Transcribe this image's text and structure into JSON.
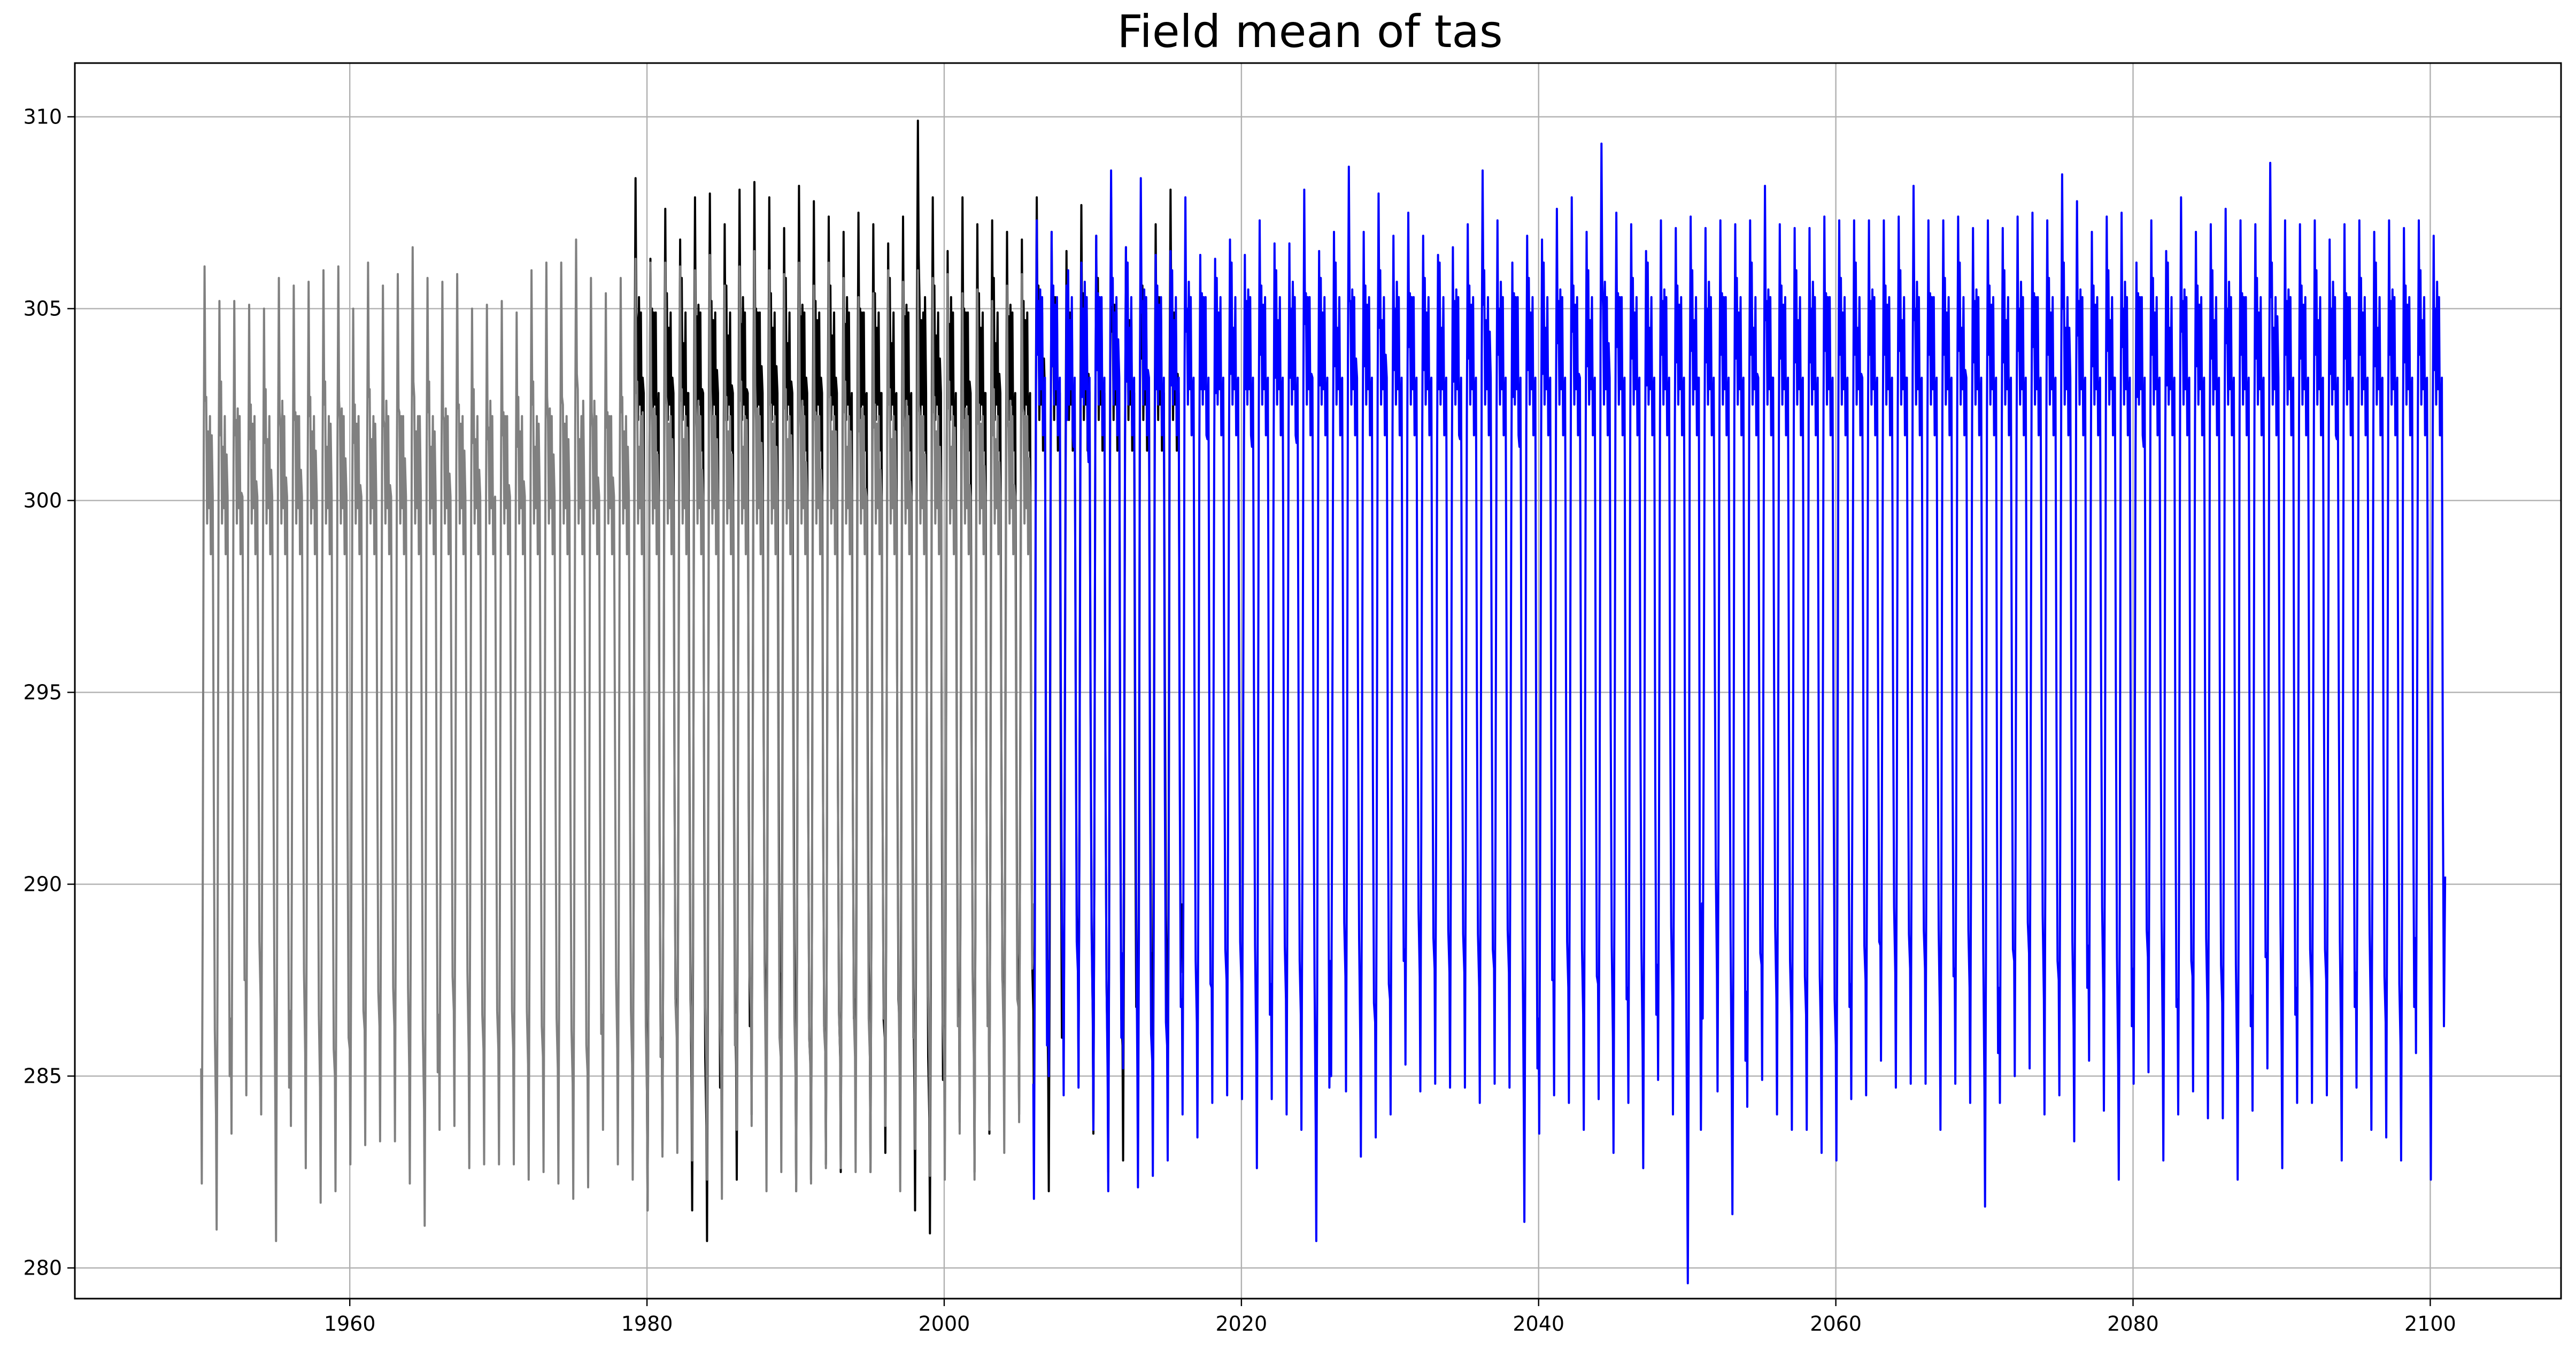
{
  "chart_data": {
    "type": "line",
    "title": "Field mean of tas",
    "xlabel": "",
    "ylabel": "",
    "xlim": [
      1941.5,
      2108.8
    ],
    "ylim": [
      279.2,
      311.4
    ],
    "xticks": [
      1960,
      1980,
      2000,
      2020,
      2040,
      2060,
      2080,
      2100
    ],
    "yticks": [
      280,
      285,
      290,
      295,
      300,
      305,
      310
    ],
    "grid": true,
    "legend": "none",
    "series": [
      {
        "color": "#000000",
        "x_range": [
          1979.0,
          2016.0
        ],
        "annual_max_approx": [
          308.4,
          306.3,
          307.6,
          306.8,
          307.9,
          308.0,
          307.2,
          308.1,
          308.3,
          307.9,
          307.1,
          308.2,
          307.8,
          307.4,
          307.0,
          307.5,
          307.2,
          306.7,
          307.4,
          309.9,
          307.9,
          306.5,
          307.9,
          307.2,
          307.3,
          307.0,
          306.8,
          307.9,
          307.0,
          306.5,
          307.7,
          306.9,
          307.9,
          306.6,
          307.2,
          307.2,
          308.1,
          307.8
        ],
        "annual_min_approx": [
          283.0,
          281.5,
          283.0,
          284.0,
          281.5,
          280.7,
          283.2,
          282.3,
          284.0,
          283.7,
          284.5,
          282.0,
          282.3,
          282.7,
          282.5,
          284.0,
          282.5,
          283.0,
          283.3,
          281.5,
          280.9,
          283.3,
          283.8,
          282.5,
          283.5,
          284.2,
          284.0,
          283.7,
          282.0,
          285.2,
          285.0,
          283.5,
          282.5,
          282.8,
          284.0,
          285.2,
          283.7,
          284.5
        ],
        "midyear_secondary_peak_approx": 304.3
      },
      {
        "color": "#808080",
        "x_range": [
          1950.0,
          2006.0
        ],
        "annual_max_approx": [
          306.1,
          305.2,
          305.2,
          305.1,
          305.0,
          305.8,
          305.6,
          305.7,
          306.0,
          306.1,
          305.0,
          306.2,
          305.6,
          305.9,
          306.6,
          305.8,
          305.7,
          305.9,
          305.0,
          305.1,
          305.2,
          304.9,
          306.0,
          306.2,
          306.2,
          306.8,
          305.8,
          305.4,
          305.8,
          306.3,
          306.2,
          306.2,
          306.1,
          306.0,
          306.4,
          305.6,
          306.1,
          306.5,
          306.0,
          305.9,
          306.2,
          305.6,
          306.2,
          305.8,
          305.3,
          305.4,
          306.0,
          305.7,
          306.0,
          305.8,
          305.9,
          305.4,
          305.5,
          305.2,
          305.6,
          305.9,
          305.4
        ],
        "annual_min_approx": [
          282.2,
          281.0,
          283.5,
          284.5,
          284.0,
          280.7,
          283.7,
          282.6,
          281.7,
          282.0,
          282.7,
          283.2,
          283.3,
          283.3,
          282.2,
          281.1,
          283.6,
          283.7,
          282.6,
          282.7,
          282.7,
          282.7,
          282.3,
          282.5,
          282.2,
          281.8,
          282.1,
          283.6,
          282.7,
          282.3,
          281.5,
          282.9,
          283.0,
          282.8,
          282.3,
          281.8,
          283.6,
          283.7,
          282.0,
          282.5,
          282.0,
          282.2,
          282.6,
          282.6,
          282.5,
          282.5,
          283.7,
          282.0,
          283.1,
          282.4,
          282.3,
          283.5,
          282.3,
          283.6,
          283.0,
          283.8,
          284.5
        ],
        "midyear_secondary_peak_approx": 301.6
      },
      {
        "color": "#0000ff",
        "x_range": [
          2006.0,
          2101.0
        ],
        "annual_max_approx": [
          307.3,
          307.0,
          305.6,
          306.2,
          306.9,
          308.6,
          306.6,
          308.4,
          306.4,
          306.5,
          307.9,
          306.4,
          306.3,
          306.8,
          306.4,
          307.3,
          306.7,
          306.7,
          308.1,
          306.5,
          307.0,
          308.7,
          307.0,
          308.0,
          306.9,
          307.5,
          306.9,
          306.4,
          306.6,
          307.2,
          308.6,
          307.3,
          306.2,
          306.9,
          306.8,
          307.6,
          307.9,
          307.0,
          309.3,
          307.5,
          307.2,
          306.5,
          307.3,
          307.1,
          307.4,
          307.1,
          307.3,
          307.2,
          307.3,
          308.2,
          307.2,
          307.1,
          307.1,
          307.4,
          307.3,
          307.3,
          307.3,
          307.3,
          307.4,
          308.2,
          307.3,
          307.3,
          307.4,
          307.1,
          307.3,
          307.1,
          307.4,
          307.5,
          307.3,
          308.5,
          307.8,
          307.0,
          307.4,
          307.5,
          306.2,
          307.3,
          306.5,
          307.9,
          307.0,
          307.2,
          307.6,
          307.3,
          307.2,
          308.8,
          307.3,
          307.2,
          307.3,
          306.8,
          307.2,
          307.3,
          307.0,
          307.3,
          307.1,
          307.3,
          306.9,
          307.6,
          308.3,
          306.9,
          307.5,
          307.8,
          306.5
        ],
        "annual_min_approx": [
          281.8,
          285.0,
          284.5,
          284.7,
          283.6,
          282.0,
          285.2,
          282.1,
          282.4,
          282.8,
          284.0,
          283.4,
          284.3,
          284.5,
          284.4,
          282.6,
          284.4,
          284.0,
          283.6,
          280.7,
          285.0,
          284.6,
          282.9,
          283.4,
          284.0,
          285.3,
          284.6,
          284.8,
          284.7,
          284.7,
          284.3,
          284.8,
          284.7,
          281.2,
          283.5,
          284.5,
          284.3,
          283.6,
          284.4,
          283.0,
          284.3,
          282.6,
          284.9,
          284.0,
          279.6,
          286.5,
          284.6,
          281.4,
          284.2,
          284.9,
          284.0,
          283.6,
          283.6,
          283.0,
          282.8,
          284.4,
          284.5,
          285.4,
          284.7,
          284.8,
          284.8,
          283.6,
          284.8,
          284.3,
          281.6,
          284.3,
          285.0,
          285.2,
          284.0,
          284.5,
          283.3,
          285.4,
          284.1,
          282.3,
          284.8,
          285.1,
          282.8,
          284.0,
          284.6,
          283.9,
          283.9,
          282.3,
          284.1,
          285.2,
          282.6,
          284.3,
          284.3,
          284.5,
          282.8,
          284.7,
          283.6,
          283.4,
          282.8,
          285.6,
          282.3,
          285.2,
          282.3,
          283.8,
          283.8,
          285.5,
          284.4
        ],
        "midyear_secondary_peak_approx": 304.7
      }
    ]
  }
}
